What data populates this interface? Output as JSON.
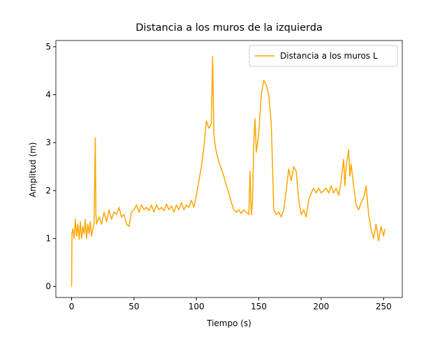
{
  "chart_data": {
    "type": "line",
    "title": "Distancia a los muros de la izquierda",
    "xlabel": "Tiempo (s)",
    "ylabel": "Amplitud (m)",
    "x": [
      0,
      0.3,
      1,
      2,
      3,
      4,
      5,
      6,
      7,
      8,
      9,
      10,
      11,
      12,
      13,
      14,
      15,
      16,
      17,
      18,
      19,
      19.5,
      20,
      22,
      24,
      26,
      28,
      30,
      32,
      34,
      36,
      38,
      40,
      42,
      44,
      46,
      48,
      50,
      52,
      54,
      56,
      58,
      60,
      62,
      64,
      66,
      68,
      70,
      72,
      74,
      76,
      78,
      80,
      82,
      84,
      86,
      88,
      90,
      92,
      94,
      96,
      98,
      100,
      102,
      104,
      106,
      108,
      110,
      112,
      113,
      114,
      115,
      116,
      118,
      120,
      122,
      124,
      126,
      128,
      130,
      132,
      134,
      136,
      138,
      140,
      142,
      143,
      144,
      145,
      146,
      147,
      148,
      150,
      152,
      154,
      156,
      158,
      160,
      161,
      162,
      164,
      166,
      168,
      170,
      172,
      174,
      176,
      178,
      180,
      182,
      184,
      186,
      188,
      190,
      192,
      194,
      196,
      198,
      200,
      202,
      204,
      206,
      208,
      210,
      212,
      214,
      216,
      218,
      219,
      220,
      222,
      223,
      224,
      226,
      228,
      230,
      232,
      234,
      236,
      238,
      240,
      242,
      244,
      246,
      248,
      250,
      251
    ],
    "series": [
      {
        "name": "Distancia a los muros L",
        "color": "#ffa500",
        "values": [
          0,
          1.1,
          1.2,
          1.0,
          1.4,
          1.05,
          1.3,
          0.98,
          1.35,
          1.0,
          1.25,
          1.1,
          1.4,
          1.0,
          1.3,
          1.1,
          1.35,
          1.05,
          1.2,
          1.3,
          3.1,
          1.5,
          1.3,
          1.45,
          1.3,
          1.55,
          1.35,
          1.6,
          1.4,
          1.55,
          1.5,
          1.65,
          1.45,
          1.5,
          1.3,
          1.25,
          1.55,
          1.6,
          1.7,
          1.55,
          1.7,
          1.6,
          1.65,
          1.58,
          1.7,
          1.55,
          1.7,
          1.6,
          1.65,
          1.58,
          1.72,
          1.6,
          1.68,
          1.55,
          1.7,
          1.6,
          1.75,
          1.6,
          1.7,
          1.65,
          1.8,
          1.65,
          1.9,
          2.2,
          2.5,
          2.9,
          3.45,
          3.3,
          3.4,
          4.8,
          3.2,
          2.95,
          2.8,
          2.6,
          2.45,
          2.3,
          2.1,
          1.95,
          1.75,
          1.6,
          1.55,
          1.6,
          1.52,
          1.6,
          1.55,
          1.5,
          2.4,
          1.5,
          1.8,
          3.0,
          3.5,
          2.8,
          3.2,
          4.0,
          4.3,
          4.2,
          4.0,
          3.4,
          2.5,
          1.6,
          1.5,
          1.55,
          1.45,
          1.6,
          2.0,
          2.45,
          2.2,
          2.5,
          2.4,
          1.8,
          1.5,
          1.6,
          1.45,
          1.8,
          1.95,
          2.05,
          1.95,
          2.05,
          1.95,
          2.0,
          2.05,
          1.95,
          2.1,
          1.95,
          2.05,
          1.9,
          2.2,
          2.65,
          2.1,
          2.5,
          2.85,
          2.3,
          2.55,
          2.1,
          1.7,
          1.6,
          1.75,
          1.85,
          2.1,
          1.5,
          1.2,
          1.0,
          1.3,
          0.95,
          1.25,
          1.05,
          1.2
        ]
      }
    ],
    "xlim": [
      -12.6,
      265
    ],
    "ylim": [
      -0.23,
      5.13
    ],
    "xticks": [
      0,
      50,
      100,
      150,
      200,
      250
    ],
    "yticks": [
      0,
      1,
      2,
      3,
      4,
      5
    ],
    "legend": "upper right"
  }
}
